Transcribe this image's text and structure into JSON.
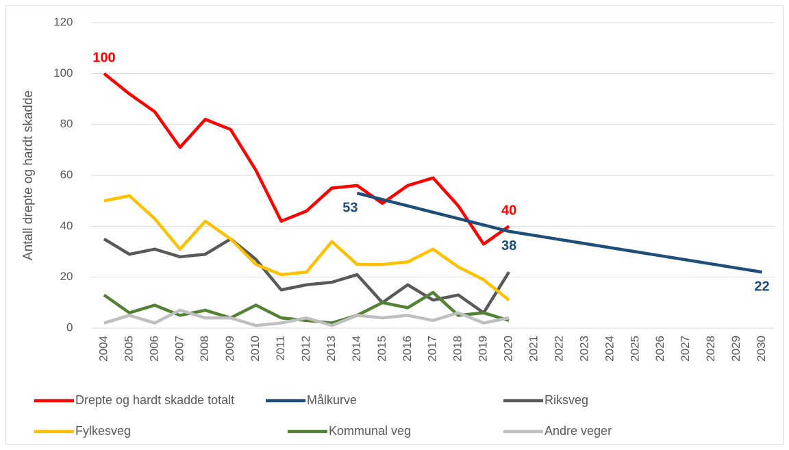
{
  "chart_data": {
    "type": "line",
    "y_label": "Antall drepte og hardt skadde",
    "categories": [
      "2004",
      "2005",
      "2006",
      "2007",
      "2008",
      "2009",
      "2010",
      "2011",
      "2012",
      "2013",
      "2014",
      "2015",
      "2016",
      "2017",
      "2018",
      "2019",
      "2020",
      "2021",
      "2022",
      "2023",
      "2024",
      "2025",
      "2026",
      "2027",
      "2028",
      "2029",
      "2030"
    ],
    "ylim": [
      0,
      120
    ],
    "yticks": [
      0,
      20,
      40,
      60,
      80,
      100,
      120
    ],
    "grid": true,
    "legend": "bottom",
    "series": [
      {
        "name": "Drepte og hardt skadde totalt",
        "color": "#ff0000",
        "values": [
          100,
          92,
          85,
          71,
          82,
          78,
          62,
          42,
          46,
          55,
          56,
          49,
          56,
          59,
          48,
          33,
          40,
          null,
          null,
          null,
          null,
          null,
          null,
          null,
          null,
          null,
          null
        ],
        "value_labels": [
          "100",
          null,
          null,
          null,
          null,
          null,
          null,
          null,
          null,
          null,
          null,
          null,
          null,
          null,
          null,
          null,
          "40",
          null,
          null,
          null,
          null,
          null,
          null,
          null,
          null,
          null,
          null
        ]
      },
      {
        "name": "Målkurve",
        "color": "#1f4e79",
        "values": [
          null,
          null,
          null,
          null,
          null,
          null,
          null,
          null,
          null,
          null,
          53,
          50.5,
          48,
          45.5,
          43,
          40.5,
          38,
          36.4,
          34.8,
          33.2,
          31.6,
          30,
          28.4,
          26.8,
          25.2,
          23.6,
          22
        ],
        "value_labels": [
          null,
          null,
          null,
          null,
          null,
          null,
          null,
          null,
          null,
          null,
          "53",
          null,
          null,
          null,
          null,
          null,
          "38",
          null,
          null,
          null,
          null,
          null,
          null,
          null,
          null,
          null,
          "22"
        ]
      },
      {
        "name": "Riksveg",
        "color": "#595959",
        "values": [
          35,
          29,
          31,
          28,
          29,
          35,
          27,
          15,
          17,
          18,
          21,
          10,
          17,
          11,
          13,
          6,
          22,
          null,
          null,
          null,
          null,
          null,
          null,
          null,
          null,
          null,
          null
        ]
      },
      {
        "name": "Fylkesveg",
        "color": "#ffc000",
        "values": [
          50,
          52,
          43,
          31,
          42,
          35,
          25,
          21,
          22,
          34,
          25,
          25,
          26,
          31,
          24,
          19,
          11,
          null,
          null,
          null,
          null,
          null,
          null,
          null,
          null,
          null,
          null
        ]
      },
      {
        "name": "Kommunal veg",
        "color": "#548235",
        "values": [
          13,
          6,
          9,
          5,
          7,
          4,
          9,
          4,
          3,
          2,
          5,
          10,
          8,
          14,
          5,
          6,
          3,
          null,
          null,
          null,
          null,
          null,
          null,
          null,
          null,
          null,
          null
        ]
      },
      {
        "name": "Andre veger",
        "color": "#bfbfbf",
        "values": [
          2,
          5,
          2,
          7,
          4,
          4,
          1,
          2,
          4,
          1,
          5,
          4,
          5,
          3,
          6,
          2,
          4,
          null,
          null,
          null,
          null,
          null,
          null,
          null,
          null,
          null,
          null
        ]
      }
    ]
  }
}
